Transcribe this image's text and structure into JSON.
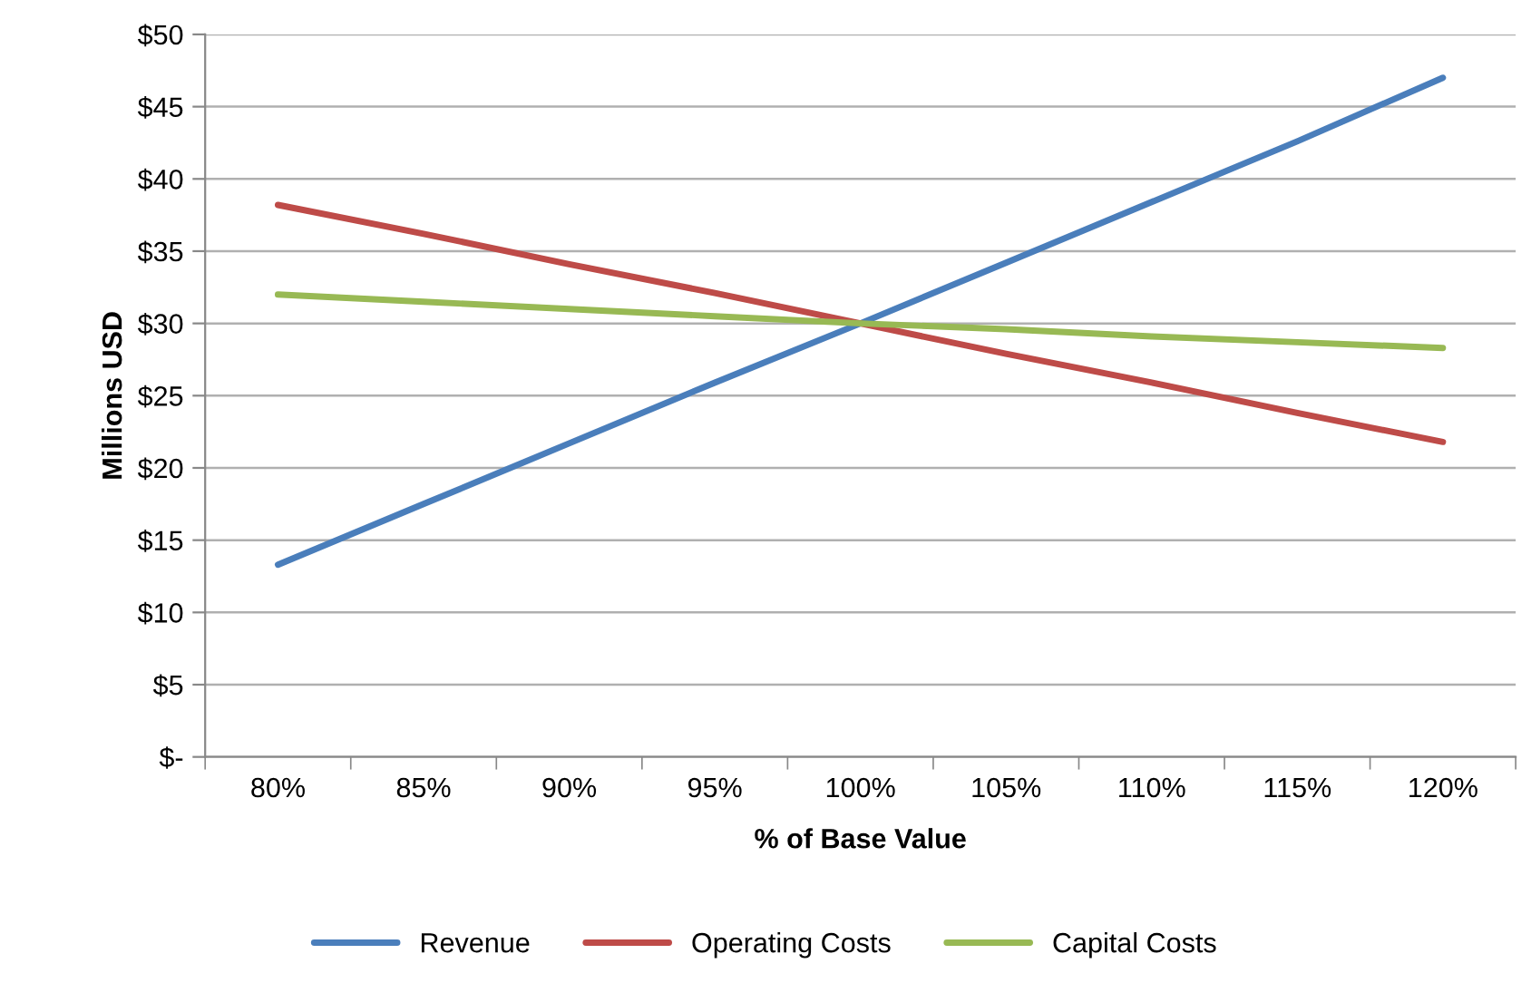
{
  "chart_data": {
    "type": "line",
    "xlabel": "% of Base Value",
    "ylabel": "Millions USD",
    "categories": [
      "80%",
      "85%",
      "90%",
      "95%",
      "100%",
      "105%",
      "110%",
      "115%",
      "120%"
    ],
    "series": [
      {
        "name": "Revenue",
        "color": "#4a7ebb",
        "values": [
          13.3,
          17.5,
          21.7,
          25.9,
          30,
          34.2,
          38.4,
          42.6,
          47
        ]
      },
      {
        "name": "Operating Costs",
        "color": "#be4b48",
        "values": [
          38.2,
          36.2,
          34.1,
          32.1,
          30,
          27.9,
          25.9,
          23.8,
          21.8
        ]
      },
      {
        "name": "Capital Costs",
        "color": "#98b954",
        "values": [
          32,
          31.5,
          31,
          30.5,
          30,
          29.6,
          29.1,
          28.7,
          28.3
        ]
      }
    ],
    "ylim": [
      0,
      50
    ],
    "yticks": [
      {
        "value": 0,
        "label": "$-"
      },
      {
        "value": 5,
        "label": "$5"
      },
      {
        "value": 10,
        "label": "$10"
      },
      {
        "value": 15,
        "label": "$15"
      },
      {
        "value": 20,
        "label": "$20"
      },
      {
        "value": 25,
        "label": "$25"
      },
      {
        "value": 30,
        "label": "$30"
      },
      {
        "value": 35,
        "label": "$35"
      },
      {
        "value": 40,
        "label": "$40"
      },
      {
        "value": 45,
        "label": "$45"
      },
      {
        "value": 50,
        "label": "$50"
      }
    ],
    "grid": "y",
    "legend": "bottom",
    "marker": "none",
    "line_style": "solid"
  }
}
